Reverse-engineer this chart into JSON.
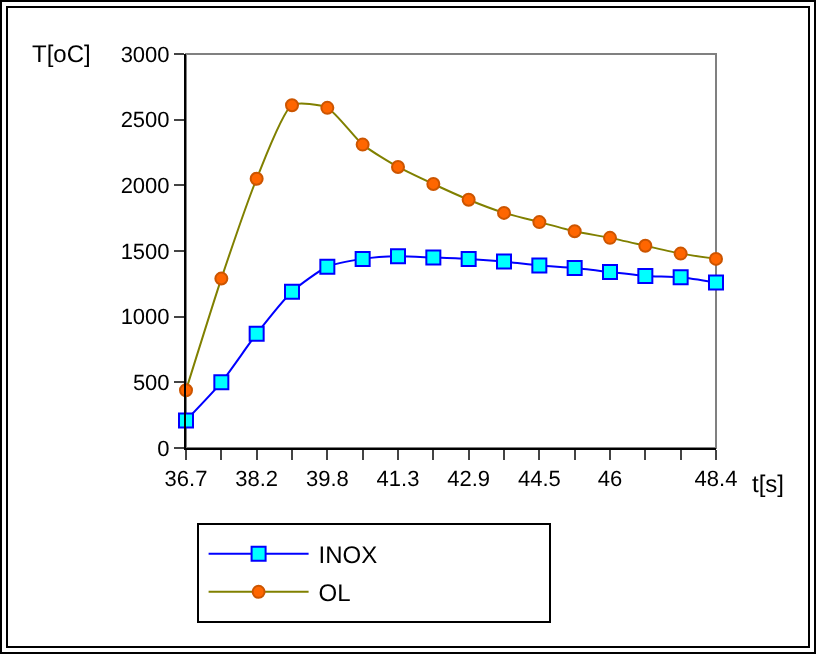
{
  "chart_data": {
    "type": "line",
    "xlabel": "t[s]",
    "ylabel": "T[oC]",
    "categories": [
      "36.7",
      null,
      "38.2",
      null,
      "39.8",
      null,
      "41.3",
      null,
      "42.9",
      null,
      "44.5",
      null,
      "46",
      null,
      null,
      "48.4"
    ],
    "series": [
      {
        "name": "INOX",
        "color": "#0000ff",
        "marker": "square",
        "values": [
          210,
          500,
          870,
          1190,
          1380,
          1440,
          1460,
          1450,
          1440,
          1420,
          1390,
          1370,
          1340,
          1310,
          1300,
          1260
        ]
      },
      {
        "name": "OL",
        "color": "#808000",
        "marker": "circle",
        "values": [
          440,
          1290,
          2050,
          2610,
          2590,
          2310,
          2140,
          2010,
          1890,
          1790,
          1720,
          1650,
          1600,
          1540,
          1480,
          1440
        ]
      }
    ],
    "ylim": [
      0,
      3000
    ],
    "yticks": [
      0,
      500,
      1000,
      1500,
      2000,
      2500,
      3000
    ],
    "grid": false,
    "legend": "bottom"
  }
}
